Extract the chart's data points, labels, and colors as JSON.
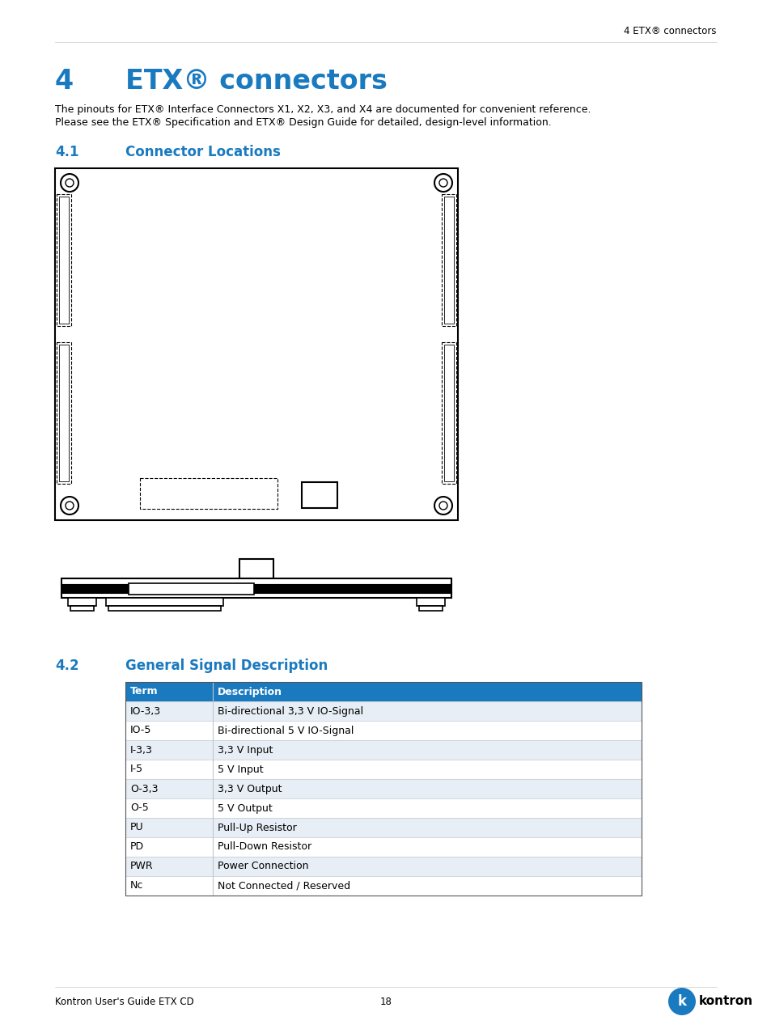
{
  "page_header": "4 ETX® connectors",
  "chapter_number": "4",
  "chapter_title": "ETX® connectors",
  "chapter_title_color": "#1a7abf",
  "chapter_text_line1": "The pinouts for ETX® Interface Connectors X1, X2, X3, and X4 are documented for convenient reference.",
  "chapter_text_line2": "Please see the ETX® Specification and ETX® Design Guide for detailed, design-level information.",
  "section_41": "4.1",
  "section_41_title": "Connector Locations",
  "section_41_color": "#1a7abf",
  "section_42": "4.2",
  "section_42_title": "General Signal Description",
  "section_42_color": "#1a7abf",
  "table_header_bg": "#1a7abf",
  "table_header_color": "#ffffff",
  "table_row_alt_bg": "#e8eef5",
  "table_row_bg": "#ffffff",
  "table_border_color": "#c0c8d0",
  "table_headers": [
    "Term",
    "Description"
  ],
  "table_rows": [
    [
      "IO-3,3",
      "Bi-directional 3,3 V IO-Signal"
    ],
    [
      "IO-5",
      "Bi-directional 5 V IO-Signal"
    ],
    [
      "I-3,3",
      "3,3 V Input"
    ],
    [
      "I-5",
      "5 V Input"
    ],
    [
      "O-3,3",
      "3,3 V Output"
    ],
    [
      "O-5",
      "5 V Output"
    ],
    [
      "PU",
      "Pull-Up Resistor"
    ],
    [
      "PD",
      "Pull-Down Resistor"
    ],
    [
      "PWR",
      "Power Connection"
    ],
    [
      "Nc",
      "Not Connected / Reserved"
    ]
  ],
  "footer_left": "Kontron User's Guide ETX CD",
  "footer_center": "18",
  "bg_color": "#ffffff",
  "text_color": "#000000",
  "draw_color": "#000000"
}
